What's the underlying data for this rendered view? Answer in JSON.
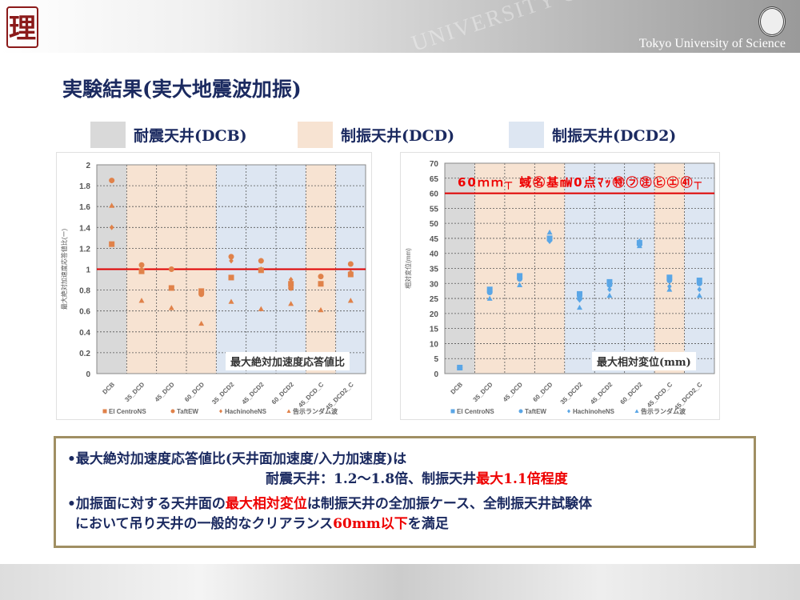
{
  "header": {
    "logo": "理",
    "university": "Tokyo University of Science",
    "watermark": "UNIVERSITY OF"
  },
  "title": "実験結果(実大地震波加振)",
  "legend_boxes": [
    {
      "label": "耐震天井(DCB)",
      "color": "#d9d9d9"
    },
    {
      "label": "制振天井(DCD)",
      "color": "#f7e3d2"
    },
    {
      "label": "制振天井(DCD2)",
      "color": "#dde6f2"
    }
  ],
  "colors": {
    "orange": "#e0824a",
    "blue": "#5aa6e6",
    "red": "#e00000"
  },
  "chart_data": [
    {
      "type": "scatter",
      "title": "最大絶対加速度応答値比",
      "ylabel": "最大絶対加速度応答値比(ー)",
      "ylim": [
        0,
        2
      ],
      "ystep": 0.2,
      "yticks": [
        "0",
        "0.2",
        "0.4",
        "0.6",
        "0.8",
        "1",
        "1.2",
        "1.4",
        "1.6",
        "1.8",
        "2"
      ],
      "categories": [
        "DCB",
        "35_DCD",
        "45_DCD",
        "60_DCD",
        "35_DCD2",
        "45_DCD2",
        "60_DCD2",
        "45_DCD_C",
        "45_DCD2_C"
      ],
      "category_groups": [
        "DCB",
        "DCD",
        "DCD",
        "DCD",
        "DCD2",
        "DCD2",
        "DCD2",
        "DCD",
        "DCD2"
      ],
      "reference_line": 1.0,
      "color": "#e0824a",
      "series": [
        {
          "name": "El CentroNS",
          "marker": "square",
          "values": [
            1.24,
            0.98,
            0.82,
            0.79,
            0.92,
            0.99,
            0.86,
            0.86,
            0.95
          ]
        },
        {
          "name": "TaftEW",
          "marker": "circle",
          "values": [
            1.85,
            1.04,
            1.0,
            0.76,
            1.12,
            1.08,
            0.82,
            0.93,
            1.05
          ]
        },
        {
          "name": "HachinoheNS",
          "marker": "diamond",
          "values": [
            1.4,
            1.0,
            0.82,
            0.78,
            1.08,
            1.0,
            0.9,
            0.86,
            0.97
          ]
        },
        {
          "name": "告示ランダム波",
          "marker": "triangle",
          "values": [
            1.61,
            0.7,
            0.63,
            0.48,
            0.69,
            0.62,
            0.67,
            0.61,
            0.7
          ]
        }
      ]
    },
    {
      "type": "scatter",
      "title": "最大相対変位(mm)",
      "ylabel": "相対変位(mm)",
      "ylim": [
        0,
        70
      ],
      "ystep": 5,
      "yticks": [
        "0",
        "5",
        "10",
        "15",
        "20",
        "25",
        "30",
        "35",
        "40",
        "45",
        "50",
        "55",
        "60",
        "65",
        "70"
      ],
      "categories": [
        "DCB",
        "35_DCD",
        "45_DCD",
        "60_DCD",
        "35_DCD2",
        "45_DCD2",
        "60_DCD2",
        "45_DCD_C",
        "45_DCD2_C"
      ],
      "category_groups": [
        "DCB",
        "DCD",
        "DCD",
        "DCD",
        "DCD2",
        "DCD2",
        "DCD2",
        "DCD",
        "DCD2"
      ],
      "reference_line": 60,
      "annotation": "60ｍｍ┬ 蜮㊔基㎽0点ﾏｯ㊕㋫㊟㋪㋓㊶┬",
      "color": "#5aa6e6",
      "series": [
        {
          "name": "El CentroNS",
          "marker": "square",
          "values": [
            2,
            28,
            32.5,
            45,
            26.5,
            30.5,
            43.5,
            32,
            31
          ]
        },
        {
          "name": "TaftEW",
          "marker": "circle",
          "values": [
            2,
            27,
            31.5,
            44.5,
            25,
            29.5,
            43,
            31,
            30
          ]
        },
        {
          "name": "HachinoheNS",
          "marker": "diamond",
          "values": [
            2,
            27.5,
            32,
            44,
            24.5,
            28,
            44,
            29,
            28
          ]
        },
        {
          "name": "告示ランダム波",
          "marker": "triangle",
          "values": [
            2,
            25,
            29.5,
            47,
            22,
            26,
            42.5,
            28,
            26
          ]
        }
      ]
    }
  ],
  "note": {
    "line1": "•最大絶対加速度応答値比(天井面加速度/入力加速度)は",
    "line2a": "耐震天井：1.2～1.8倍、制振天井",
    "line2b": "最大1.1倍程度",
    "line3a": "•加振面に対する天井面の",
    "line3b": "最大相対変位",
    "line3c": "は制振天井の全加振ケース、全制振天井試験体",
    "line4a": "において吊り天井の一般的なクリアランス",
    "line4b": "60mm以下",
    "line4c": "を満足"
  }
}
